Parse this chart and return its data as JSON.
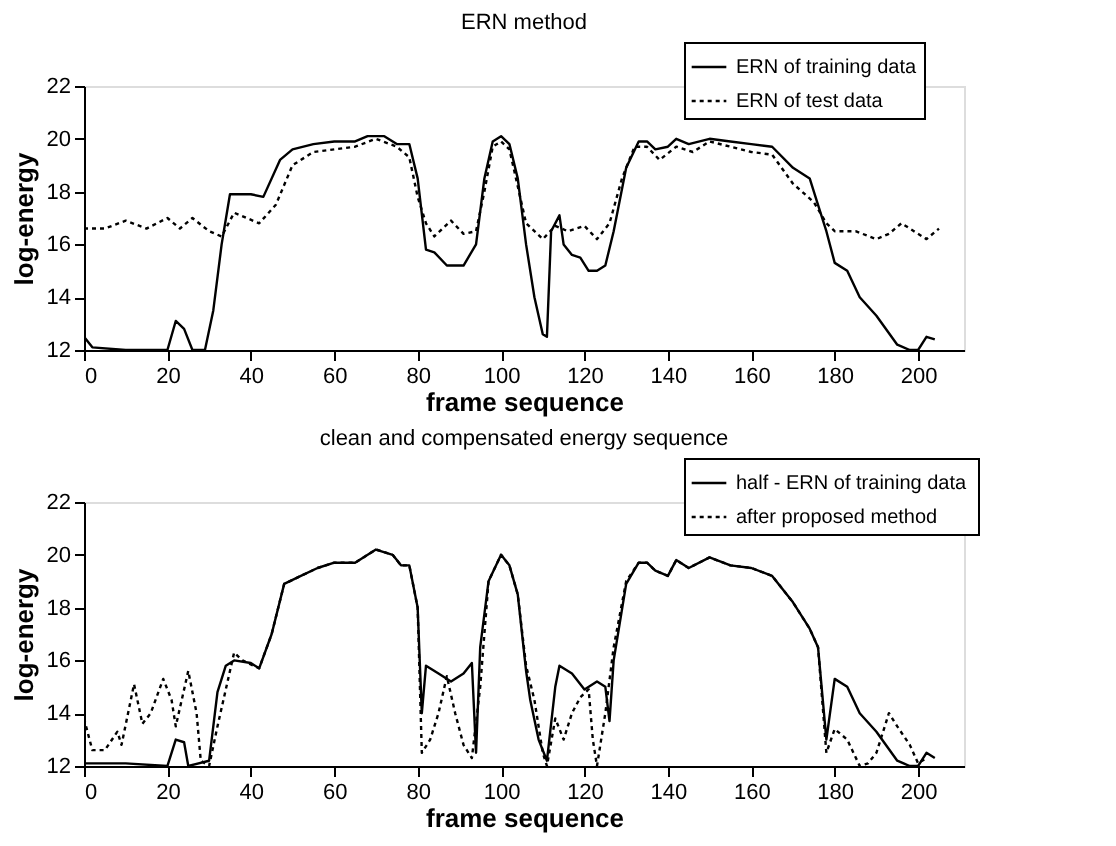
{
  "chart_data": [
    {
      "type": "line",
      "title": "ERN method",
      "xlabel": "frame sequence",
      "ylabel": "log-energy",
      "xlim": [
        0,
        211
      ],
      "xticks": [
        0,
        20,
        40,
        60,
        80,
        100,
        120,
        140,
        160,
        180,
        200
      ],
      "ylim": [
        12,
        22
      ],
      "yticks": [
        12,
        14,
        16,
        18,
        20,
        22
      ],
      "legend": "top right",
      "grid": false,
      "series": [
        {
          "name": "ERN of training data",
          "color": "#000000",
          "line_style": "solid",
          "x": [
            0,
            2,
            10,
            20,
            22,
            24,
            26,
            29,
            31,
            33,
            35,
            40,
            43,
            47,
            50,
            55,
            60,
            65,
            68,
            72,
            75,
            78,
            80,
            82,
            84,
            87,
            91,
            94,
            96,
            98,
            100,
            102,
            104,
            106,
            108,
            110,
            111,
            112,
            114,
            115,
            117,
            119,
            121,
            123,
            125,
            127,
            130,
            133,
            135,
            137,
            140,
            142,
            145,
            150,
            155,
            160,
            165,
            170,
            174,
            176,
            178,
            180,
            183,
            186,
            190,
            195,
            198,
            200,
            202,
            204
          ],
          "values": [
            12.5,
            12.1,
            12.0,
            12.0,
            13.1,
            12.8,
            12.0,
            12.0,
            13.5,
            16.0,
            17.9,
            17.9,
            17.8,
            19.2,
            19.6,
            19.8,
            19.9,
            19.9,
            20.1,
            20.1,
            19.8,
            19.8,
            18.5,
            15.8,
            15.7,
            15.2,
            15.2,
            16.0,
            18.5,
            19.9,
            20.1,
            19.8,
            18.5,
            16.0,
            14.0,
            12.6,
            12.5,
            16.5,
            17.1,
            16.0,
            15.6,
            15.5,
            15.0,
            15.0,
            15.2,
            16.5,
            18.9,
            19.9,
            19.9,
            19.6,
            19.7,
            20.0,
            19.8,
            20.0,
            19.9,
            19.8,
            19.7,
            18.9,
            18.5,
            17.5,
            16.5,
            15.3,
            15.0,
            14.0,
            13.3,
            12.2,
            12.0,
            12.0,
            12.5,
            12.4
          ]
        },
        {
          "name": "ERN of test data",
          "color": "#000000",
          "line_style": "dotted",
          "x": [
            0,
            5,
            10,
            15,
            20,
            23,
            26,
            30,
            33,
            36,
            42,
            46,
            50,
            55,
            60,
            65,
            70,
            75,
            78,
            80,
            82,
            84,
            88,
            91,
            94,
            96,
            98,
            100,
            102,
            104,
            106,
            108,
            110,
            113,
            116,
            120,
            123,
            126,
            129,
            132,
            135,
            138,
            142,
            146,
            150,
            155,
            160,
            165,
            170,
            175,
            178,
            180,
            185,
            190,
            193,
            196,
            199,
            202,
            205
          ],
          "values": [
            16.6,
            16.6,
            16.9,
            16.6,
            17.0,
            16.6,
            17.0,
            16.5,
            16.3,
            17.2,
            16.8,
            17.5,
            19.0,
            19.5,
            19.6,
            19.7,
            20.0,
            19.7,
            19.3,
            17.8,
            16.8,
            16.3,
            16.9,
            16.4,
            16.5,
            18.0,
            19.7,
            19.9,
            19.6,
            18.2,
            16.8,
            16.5,
            16.2,
            16.7,
            16.5,
            16.7,
            16.2,
            16.8,
            18.5,
            19.7,
            19.7,
            19.2,
            19.7,
            19.5,
            19.9,
            19.7,
            19.5,
            19.4,
            18.3,
            17.6,
            16.8,
            16.5,
            16.5,
            16.2,
            16.4,
            16.8,
            16.5,
            16.2,
            16.6
          ]
        }
      ]
    },
    {
      "type": "line",
      "title": "clean and compensated energy sequence",
      "xlabel": "frame sequence",
      "ylabel": "log-energy",
      "xlim": [
        0,
        211
      ],
      "xticks": [
        0,
        20,
        40,
        60,
        80,
        100,
        120,
        140,
        160,
        180,
        200
      ],
      "ylim": [
        12,
        22
      ],
      "yticks": [
        12,
        14,
        16,
        18,
        20,
        22
      ],
      "legend": "top right",
      "grid": false,
      "series": [
        {
          "name": "half -  ERN of training data",
          "color": "#000000",
          "line_style": "solid",
          "x": [
            0,
            10,
            20,
            22,
            24,
            25,
            30,
            32,
            34,
            36,
            40,
            42,
            45,
            48,
            52,
            56,
            60,
            65,
            70,
            74,
            76,
            78,
            80,
            81,
            82,
            85,
            88,
            91,
            93,
            94,
            95,
            97,
            100,
            102,
            104,
            106,
            107,
            109,
            111,
            113,
            114,
            117,
            120,
            123,
            125,
            126,
            127,
            130,
            133,
            135,
            137,
            140,
            142,
            145,
            150,
            155,
            160,
            165,
            170,
            174,
            176,
            178,
            180,
            183,
            186,
            190,
            195,
            198,
            200,
            202,
            204
          ],
          "values": [
            12.1,
            12.1,
            12.0,
            13.0,
            12.9,
            12.0,
            12.2,
            14.8,
            15.8,
            16.0,
            15.9,
            15.7,
            17.0,
            18.9,
            19.2,
            19.5,
            19.7,
            19.7,
            20.2,
            20.0,
            19.6,
            19.6,
            18.0,
            14.0,
            15.8,
            15.5,
            15.2,
            15.5,
            15.9,
            12.5,
            16.5,
            19.0,
            20.0,
            19.6,
            18.5,
            15.6,
            14.5,
            13.0,
            12.2,
            15.0,
            15.8,
            15.5,
            14.9,
            15.2,
            15.0,
            13.7,
            16.0,
            18.9,
            19.7,
            19.7,
            19.4,
            19.2,
            19.8,
            19.5,
            19.9,
            19.6,
            19.5,
            19.2,
            18.2,
            17.2,
            16.5,
            13.0,
            15.3,
            15.0,
            14.0,
            13.3,
            12.2,
            12.0,
            12.0,
            12.5,
            12.3
          ]
        },
        {
          "name": "after proposed method",
          "color": "#000000",
          "line_style": "dotted",
          "x": [
            0,
            2,
            5,
            8,
            9,
            12,
            14,
            16,
            19,
            21,
            22,
            25,
            27,
            28,
            30,
            32,
            34,
            36,
            38,
            42,
            45,
            48,
            52,
            56,
            60,
            65,
            70,
            74,
            76,
            78,
            80,
            81,
            83,
            85,
            87,
            89,
            91,
            93,
            95,
            97,
            100,
            102,
            104,
            106,
            108,
            110,
            111,
            113,
            115,
            117,
            119,
            121,
            122,
            123,
            125,
            127,
            130,
            133,
            135,
            137,
            140,
            142,
            145,
            150,
            155,
            160,
            165,
            170,
            174,
            176,
            178,
            180,
            183,
            186,
            188,
            190,
            193,
            195,
            198,
            200,
            202
          ],
          "values": [
            13.8,
            12.6,
            12.6,
            13.3,
            12.8,
            15.1,
            13.6,
            14.0,
            15.3,
            14.5,
            13.5,
            15.6,
            14.0,
            12.2,
            12.0,
            13.5,
            14.9,
            16.3,
            16.0,
            15.7,
            17.0,
            18.9,
            19.2,
            19.5,
            19.7,
            19.7,
            20.2,
            20.0,
            19.6,
            19.6,
            18.0,
            12.5,
            13.0,
            14.0,
            15.4,
            14.0,
            12.8,
            12.3,
            15.0,
            19.0,
            20.0,
            19.6,
            18.5,
            15.8,
            14.5,
            12.5,
            12.0,
            13.8,
            13.0,
            14.0,
            14.6,
            14.9,
            13.0,
            12.0,
            14.0,
            16.5,
            19.0,
            19.7,
            19.7,
            19.4,
            19.2,
            19.8,
            19.5,
            19.9,
            19.6,
            19.5,
            19.2,
            18.2,
            17.2,
            16.5,
            12.5,
            13.4,
            13.0,
            12.0,
            12.1,
            12.5,
            14.0,
            13.5,
            12.8,
            12.1,
            12.3
          ]
        }
      ]
    }
  ]
}
